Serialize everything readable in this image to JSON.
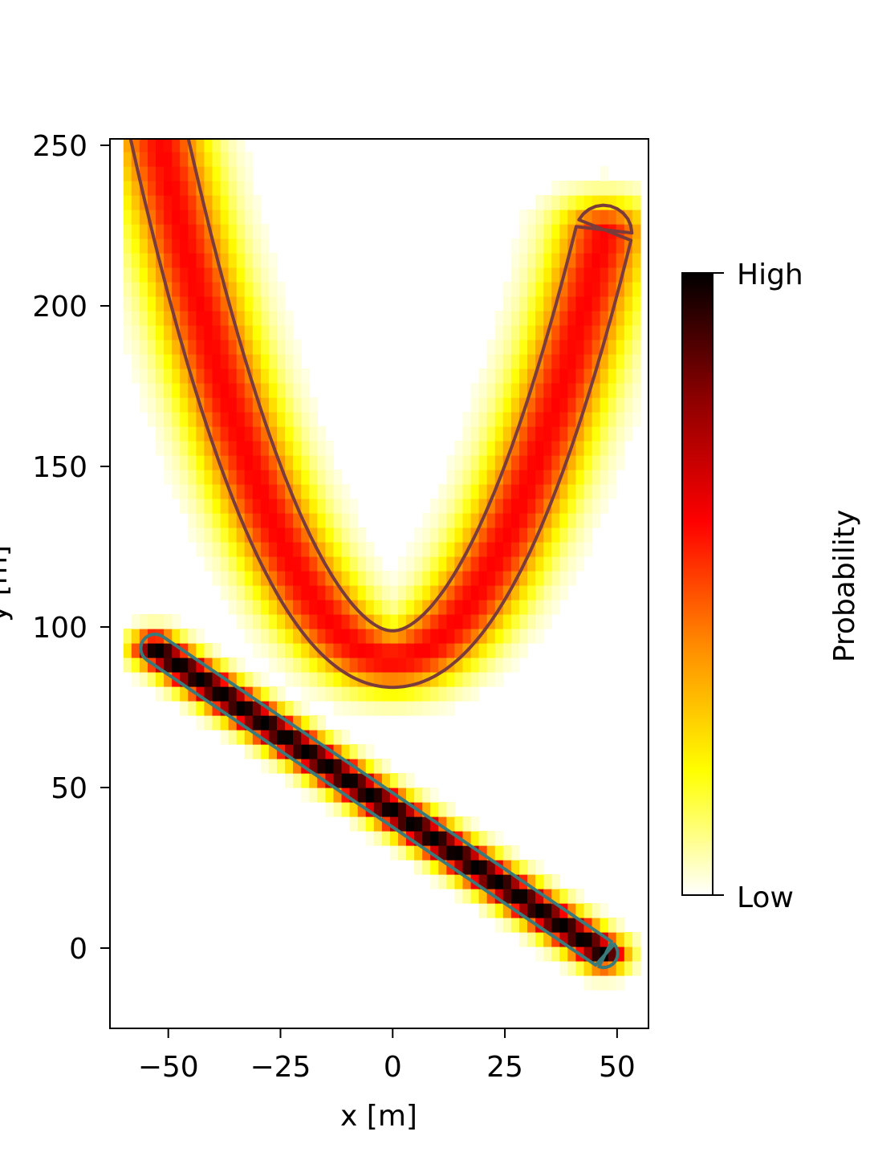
{
  "chart_data": {
    "type": "heatmap",
    "title": "",
    "xlabel": "x [m]",
    "ylabel": "y [m]",
    "xlim": [
      -63,
      57
    ],
    "ylim": [
      -25,
      252
    ],
    "xticks": [
      -50,
      -25,
      0,
      25,
      50
    ],
    "xtick_labels": [
      "−50",
      "−25",
      "0",
      "25",
      "50"
    ],
    "yticks": [
      0,
      50,
      100,
      150,
      200,
      250
    ],
    "ytick_labels": [
      "0",
      "50",
      "100",
      "150",
      "200",
      "250"
    ],
    "grid": false,
    "colormap": "hot_r",
    "colorbar": {
      "label": "Probability",
      "high_label": "High",
      "low_label": "Low",
      "colors": [
        "#ffffff",
        "#ffff00",
        "#ff8c00",
        "#ff0000",
        "#8b0000",
        "#000000"
      ]
    },
    "series": [
      {
        "shape": "parabola",
        "equation": "y = 90 + 0.06*x^2",
        "x_range": [
          -53,
          47
        ],
        "band_halfwidth": 16,
        "peak_probability": 0.6,
        "contour_color": "#7a3b3b"
      },
      {
        "shape": "line",
        "equation": "y = 43 - 0.95*x",
        "x_range": [
          -53,
          47
        ],
        "band_halfwidth": 8,
        "peak_probability": 1.0,
        "contour_color": "#3a7a7a"
      }
    ]
  }
}
